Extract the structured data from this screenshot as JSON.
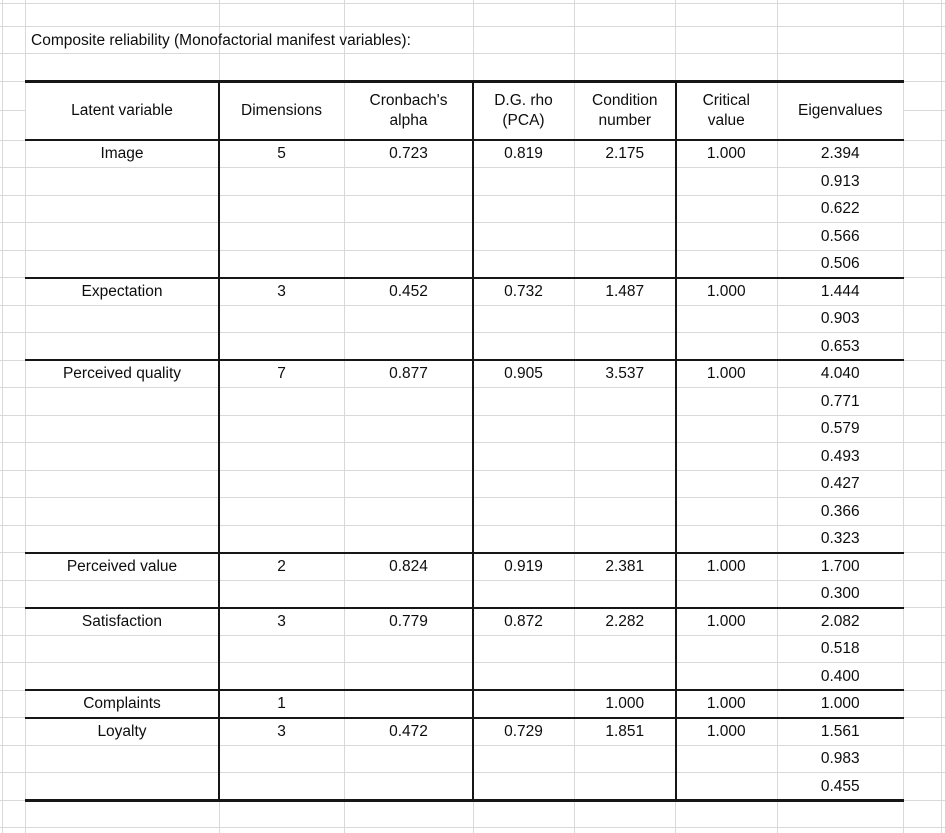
{
  "title": "Composite reliability (Monofactorial manifest variables):",
  "table": {
    "headers": [
      {
        "id": "latent-variable",
        "label": "Latent variable"
      },
      {
        "id": "dimensions",
        "label": "Dimensions"
      },
      {
        "id": "cronbachs-alpha",
        "label": "Cronbach's\nalpha"
      },
      {
        "id": "dg-rho-pca",
        "label": "D.G. rho\n(PCA)"
      },
      {
        "id": "condition-number",
        "label": "Condition\nnumber"
      },
      {
        "id": "critical-value",
        "label": "Critical\nvalue"
      },
      {
        "id": "eigenvalues",
        "label": "Eigenvalues"
      }
    ],
    "groups": [
      {
        "latent_variable": "Image",
        "dimensions": "5",
        "cronbachs_alpha": "0.723",
        "dg_rho_pca": "0.819",
        "condition_number": "2.175",
        "critical_value": "1.000",
        "eigenvalues": [
          "2.394",
          "0.913",
          "0.622",
          "0.566",
          "0.506"
        ]
      },
      {
        "latent_variable": "Expectation",
        "dimensions": "3",
        "cronbachs_alpha": "0.452",
        "dg_rho_pca": "0.732",
        "condition_number": "1.487",
        "critical_value": "1.000",
        "eigenvalues": [
          "1.444",
          "0.903",
          "0.653"
        ]
      },
      {
        "latent_variable": "Perceived quality",
        "dimensions": "7",
        "cronbachs_alpha": "0.877",
        "dg_rho_pca": "0.905",
        "condition_number": "3.537",
        "critical_value": "1.000",
        "eigenvalues": [
          "4.040",
          "0.771",
          "0.579",
          "0.493",
          "0.427",
          "0.366",
          "0.323"
        ]
      },
      {
        "latent_variable": "Perceived value",
        "dimensions": "2",
        "cronbachs_alpha": "0.824",
        "dg_rho_pca": "0.919",
        "condition_number": "2.381",
        "critical_value": "1.000",
        "eigenvalues": [
          "1.700",
          "0.300"
        ]
      },
      {
        "latent_variable": "Satisfaction",
        "dimensions": "3",
        "cronbachs_alpha": "0.779",
        "dg_rho_pca": "0.872",
        "condition_number": "2.282",
        "critical_value": "1.000",
        "eigenvalues": [
          "2.082",
          "0.518",
          "0.400"
        ]
      },
      {
        "latent_variable": "Complaints",
        "dimensions": "1",
        "cronbachs_alpha": "",
        "dg_rho_pca": "",
        "condition_number": "1.000",
        "critical_value": "1.000",
        "eigenvalues": [
          "1.000"
        ]
      },
      {
        "latent_variable": "Loyalty",
        "dimensions": "3",
        "cronbachs_alpha": "0.472",
        "dg_rho_pca": "0.729",
        "condition_number": "1.851",
        "critical_value": "1.000",
        "eigenvalues": [
          "1.561",
          "0.983",
          "0.455"
        ]
      }
    ]
  },
  "colors": {
    "background": "#ffffff",
    "grid_line": "#d9d9d9",
    "table_border": "#161616",
    "text": "#0d0d0d"
  }
}
